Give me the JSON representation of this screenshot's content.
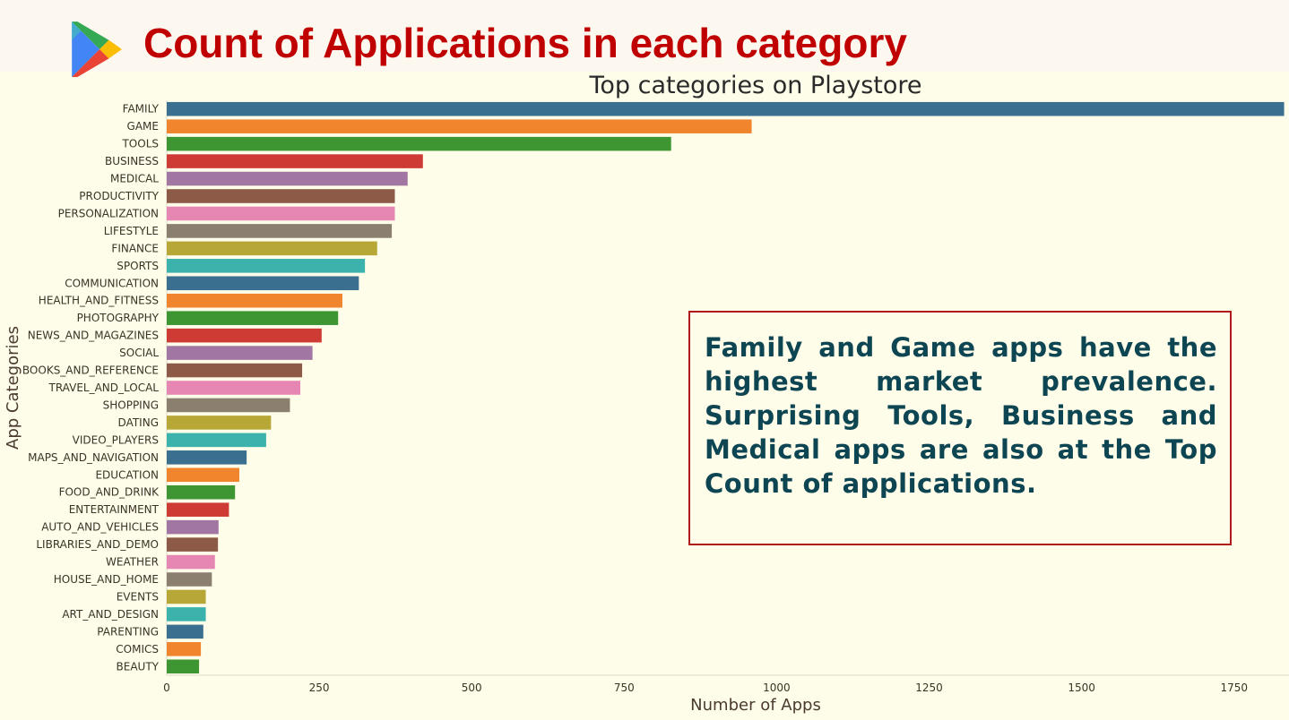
{
  "header": {
    "title": "Count of Applications in each category",
    "logo_icon": "google-play-icon"
  },
  "callout": {
    "text": "Family and Game apps have the highest market prevalence. Surprising Tools, Business and Medical apps are also at the Top Count of applications."
  },
  "chart_data": {
    "type": "bar",
    "orientation": "horizontal",
    "title": "Top categories on Playstore",
    "xlabel": "Number of Apps",
    "ylabel": "App Categories",
    "xlim": [
      0,
      1840
    ],
    "xticks": [
      0,
      250,
      500,
      750,
      1000,
      1250,
      1500,
      1750
    ],
    "grid": false,
    "legend": "none",
    "palette": [
      "#3a6f8f",
      "#f0852d",
      "#3e9633",
      "#ce3b34",
      "#a276a2",
      "#8c5a47",
      "#e686b3",
      "#8b8070",
      "#b6a737",
      "#3bb2ab"
    ],
    "categories": [
      "FAMILY",
      "GAME",
      "TOOLS",
      "BUSINESS",
      "MEDICAL",
      "PRODUCTIVITY",
      "PERSONALIZATION",
      "LIFESTYLE",
      "FINANCE",
      "SPORTS",
      "COMMUNICATION",
      "HEALTH_AND_FITNESS",
      "PHOTOGRAPHY",
      "NEWS_AND_MAGAZINES",
      "SOCIAL",
      "BOOKS_AND_REFERENCE",
      "TRAVEL_AND_LOCAL",
      "SHOPPING",
      "DATING",
      "VIDEO_PLAYERS",
      "MAPS_AND_NAVIGATION",
      "EDUCATION",
      "FOOD_AND_DRINK",
      "ENTERTAINMENT",
      "AUTO_AND_VEHICLES",
      "LIBRARIES_AND_DEMO",
      "WEATHER",
      "HOUSE_AND_HOME",
      "EVENTS",
      "ART_AND_DESIGN",
      "PARENTING",
      "COMICS",
      "BEAUTY"
    ],
    "values": [
      1832,
      959,
      827,
      420,
      395,
      374,
      374,
      369,
      345,
      325,
      315,
      288,
      281,
      254,
      239,
      222,
      219,
      202,
      171,
      163,
      131,
      119,
      112,
      102,
      85,
      84,
      79,
      74,
      64,
      64,
      60,
      56,
      53
    ]
  }
}
